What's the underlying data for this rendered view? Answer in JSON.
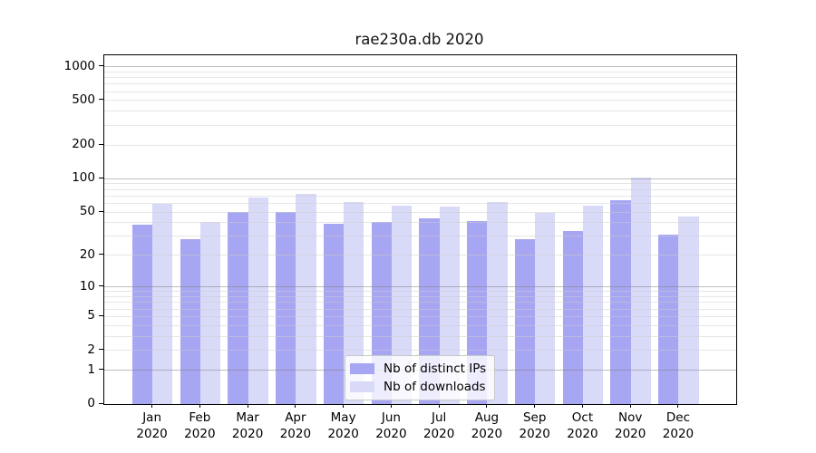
{
  "chart_data": {
    "type": "bar",
    "title": "rae230a.db 2020",
    "categories": [
      "Jan",
      "Feb",
      "Mar",
      "Apr",
      "May",
      "Jun",
      "Jul",
      "Aug",
      "Sep",
      "Oct",
      "Nov",
      "Dec"
    ],
    "x_sublabel": "2020",
    "series": [
      {
        "name": "Nb of distinct IPs",
        "color": "#a6a6f2",
        "values": [
          38,
          28,
          50,
          50,
          39,
          40,
          43,
          41,
          28,
          33,
          63,
          31
        ]
      },
      {
        "name": "Nb of downloads",
        "color": "#d9d9f8",
        "values": [
          59,
          40,
          67,
          72,
          61,
          57,
          56,
          61,
          49,
          57,
          102,
          45
        ]
      }
    ],
    "y_ticks": [
      1000,
      500,
      200,
      100,
      50,
      20,
      10,
      5,
      2,
      1,
      0
    ],
    "y_scale": "log10(1+v)",
    "ylim": [
      0,
      1250
    ],
    "grid": true,
    "legend_position": "bottom-center"
  }
}
